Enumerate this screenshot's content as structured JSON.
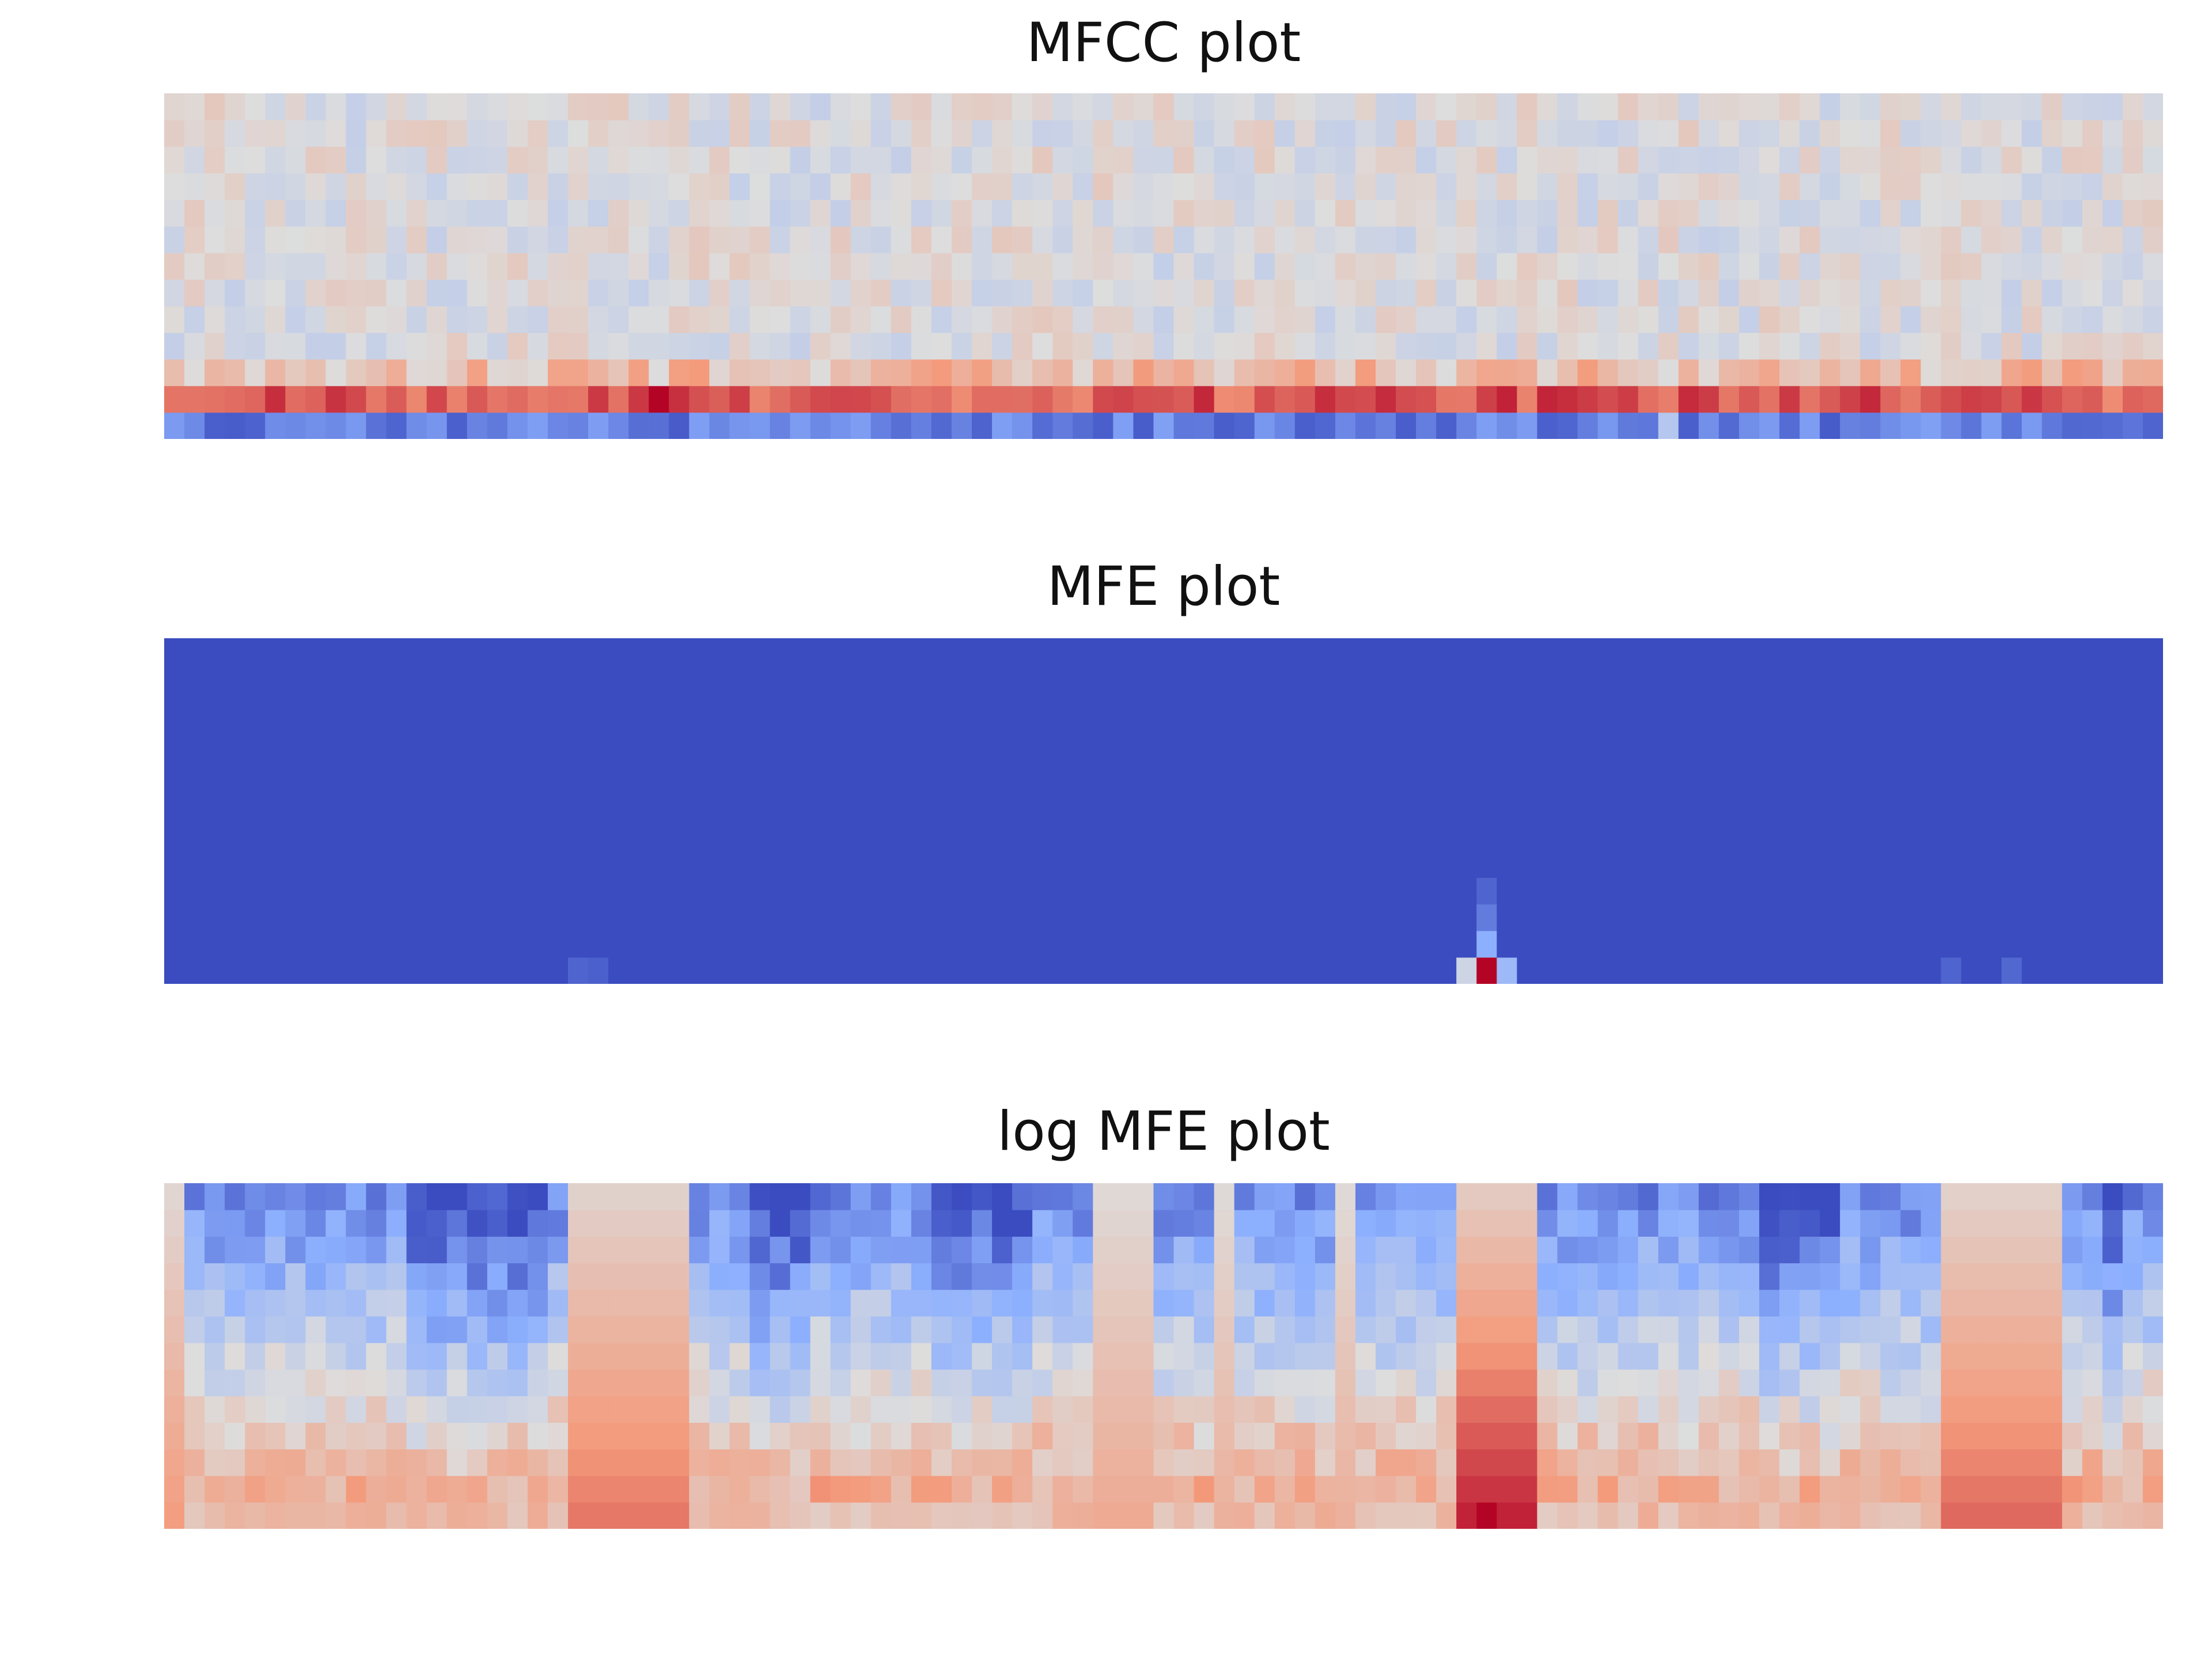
{
  "colormap": "coolwarm",
  "colors": {
    "cold": "#3b4cc0",
    "neutral": "#dddddd",
    "hot": "#b40426",
    "background": "#ffffff"
  },
  "chart_data": [
    {
      "type": "heatmap",
      "title": "MFCC plot",
      "axes_visible": false,
      "rows": 13,
      "columns": 99,
      "colormap": "coolwarm",
      "value_range": [
        -1,
        1
      ],
      "row_profiles": [
        {
          "row": 0,
          "label": "bottom row",
          "mean": -0.75
        },
        {
          "row": 1,
          "label": "second row",
          "mean": 0.72
        },
        {
          "row": 2,
          "label": "third row",
          "mean": 0.25
        },
        {
          "row": 3,
          "label": "upper rows",
          "mean": 0.0
        }
      ],
      "highlights": [
        {
          "column": 24,
          "row": 1,
          "value": 1.0
        },
        {
          "column": 66,
          "row": 1,
          "value": 0.9
        },
        {
          "column": 74,
          "row": 0,
          "value": -0.25
        }
      ]
    },
    {
      "type": "heatmap",
      "title": "MFE plot",
      "axes_visible": false,
      "rows": 13,
      "columns": 99,
      "colormap": "coolwarm",
      "value_range": [
        0,
        1
      ],
      "baseline": 0.0,
      "peaks": [
        {
          "column": 65,
          "row": 0,
          "value": 1.0
        },
        {
          "column": 64,
          "row": 0,
          "value": 0.45
        },
        {
          "column": 66,
          "row": 0,
          "value": 0.3
        },
        {
          "column": 65,
          "row": 1,
          "value": 0.25
        },
        {
          "column": 65,
          "row": 2,
          "value": 0.12
        },
        {
          "column": 65,
          "row": 3,
          "value": 0.06
        },
        {
          "column": 20,
          "row": 0,
          "value": 0.06
        },
        {
          "column": 21,
          "row": 0,
          "value": 0.05
        },
        {
          "column": 88,
          "row": 0,
          "value": 0.06
        },
        {
          "column": 91,
          "row": 0,
          "value": 0.07
        }
      ]
    },
    {
      "type": "heatmap",
      "title": "log MFE plot",
      "axes_visible": false,
      "rows": 13,
      "columns": 99,
      "colormap": "coolwarm",
      "value_range": [
        -1,
        1
      ],
      "warm_column_bands": [
        {
          "columns": [
            0,
            0
          ],
          "strength": 0.55
        },
        {
          "columns": [
            20,
            25
          ],
          "strength": 0.7
        },
        {
          "columns": [
            46,
            48
          ],
          "strength": 0.45
        },
        {
          "columns": [
            52,
            52
          ],
          "strength": 0.4
        },
        {
          "columns": [
            58,
            58
          ],
          "strength": 0.4
        },
        {
          "columns": [
            64,
            67
          ],
          "strength": 1.0
        },
        {
          "columns": [
            88,
            93
          ],
          "strength": 0.75
        }
      ],
      "cool_column_bands": [
        {
          "columns": [
            12,
            18
          ],
          "strength": 0.75
        },
        {
          "columns": [
            29,
            31
          ],
          "strength": 0.75
        },
        {
          "columns": [
            38,
            42
          ],
          "strength": 0.6
        },
        {
          "columns": [
            79,
            82
          ],
          "strength": 0.75
        },
        {
          "columns": [
            96,
            96
          ],
          "strength": 0.7
        }
      ],
      "peak": {
        "column": 65,
        "row": 0,
        "value": 1.0
      }
    }
  ]
}
